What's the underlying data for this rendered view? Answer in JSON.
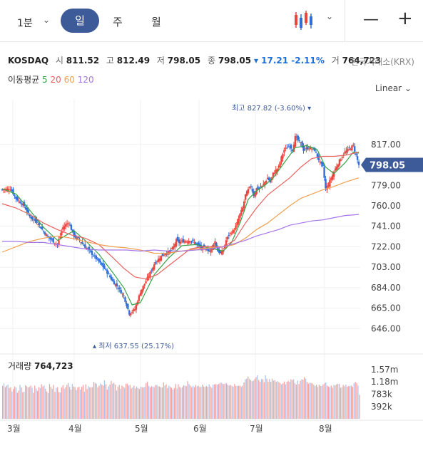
{
  "toolbar": {
    "interval": "1분",
    "periods": [
      "일",
      "주",
      "월"
    ],
    "active": "일",
    "minus": "—",
    "plus": "+"
  },
  "quote": {
    "symbol": "KOSDAQ",
    "open_label": "시",
    "open": "811.52",
    "high_label": "고",
    "high": "812.49",
    "low_label": "저",
    "low": "798.05",
    "close_label": "종",
    "close": "798.05",
    "change": "▾ 17.21 -2.11%",
    "volume_label": "거",
    "volume": "764,723",
    "exchange": "한국거래소(KRX)"
  },
  "ma_legend": {
    "label": "이동평균",
    "periods": [
      "5",
      "20",
      "60",
      "120"
    ],
    "colors": [
      "#36a34a",
      "#e8625f",
      "#f0a050",
      "#a674e8"
    ]
  },
  "scale_label": "Linear",
  "colors": {
    "up": "#e8473f",
    "down": "#2f6fd6",
    "price_tag": "#3d5a99"
  },
  "chart_data": {
    "type": "candlestick",
    "price_axis": {
      "ticks": [
        646.0,
        665.0,
        684.0,
        703.0,
        722.0,
        741.0,
        760.0,
        779.0,
        798.05,
        817.0
      ],
      "tick_labels": [
        "646.00",
        "665.00",
        "684.00",
        "703.00",
        "722.00",
        "741.00",
        "760.00",
        "779.00",
        "798.05",
        "817.00"
      ],
      "range": [
        627,
        852
      ]
    },
    "time_axis": {
      "labels": [
        "3월",
        "4월",
        "5월",
        "6월",
        "7월",
        "8월"
      ]
    },
    "annotations": {
      "high": {
        "text": "최고 827.82 (-3.60%)",
        "value": 827.82
      },
      "low": {
        "text": "최저 637.55 (25.17%)",
        "value": 637.55
      },
      "last": {
        "text": "798.05",
        "value": 798.05
      }
    },
    "close_path": [
      [
        0,
        775
      ],
      [
        6,
        776
      ],
      [
        10,
        767
      ],
      [
        16,
        760
      ],
      [
        20,
        750
      ],
      [
        26,
        744
      ],
      [
        30,
        736
      ],
      [
        34,
        730
      ],
      [
        40,
        724
      ],
      [
        44,
        740
      ],
      [
        48,
        745
      ],
      [
        52,
        732
      ],
      [
        56,
        728
      ],
      [
        60,
        722
      ],
      [
        66,
        714
      ],
      [
        70,
        708
      ],
      [
        74,
        702
      ],
      [
        80,
        690
      ],
      [
        84,
        684
      ],
      [
        88,
        676
      ],
      [
        92,
        660
      ],
      [
        96,
        664
      ],
      [
        100,
        680
      ],
      [
        104,
        690
      ],
      [
        108,
        700
      ],
      [
        110,
        706
      ],
      [
        114,
        712
      ],
      [
        118,
        716
      ],
      [
        122,
        718
      ],
      [
        124,
        722
      ],
      [
        126,
        728
      ],
      [
        128,
        726
      ],
      [
        130,
        727
      ],
      [
        136,
        728
      ],
      [
        140,
        725
      ],
      [
        144,
        721
      ],
      [
        148,
        720
      ],
      [
        150,
        718
      ],
      [
        154,
        727
      ],
      [
        156,
        718
      ],
      [
        158,
        716
      ],
      [
        160,
        719
      ],
      [
        162,
        728
      ],
      [
        164,
        733
      ],
      [
        168,
        738
      ],
      [
        170,
        744
      ],
      [
        172,
        752
      ],
      [
        174,
        758
      ],
      [
        176,
        770
      ],
      [
        178,
        775
      ],
      [
        180,
        778
      ],
      [
        182,
        770
      ],
      [
        184,
        776
      ],
      [
        186,
        776
      ],
      [
        188,
        778
      ],
      [
        190,
        782
      ],
      [
        192,
        786
      ],
      [
        194,
        782
      ],
      [
        196,
        790
      ],
      [
        200,
        796
      ],
      [
        202,
        805
      ],
      [
        204,
        812
      ],
      [
        208,
        816
      ],
      [
        210,
        812
      ],
      [
        212,
        824
      ],
      [
        216,
        818
      ],
      [
        218,
        812
      ],
      [
        222,
        814
      ],
      [
        226,
        812
      ],
      [
        230,
        800
      ],
      [
        232,
        796
      ],
      [
        234,
        776
      ],
      [
        236,
        780
      ],
      [
        240,
        792
      ],
      [
        244,
        802
      ],
      [
        248,
        810
      ],
      [
        252,
        814
      ],
      [
        254,
        816
      ],
      [
        256,
        807
      ],
      [
        258,
        798
      ]
    ],
    "ma": [
      {
        "period": "5",
        "values": [
          [
            0,
            776
          ],
          [
            10,
            771
          ],
          [
            20,
            756
          ],
          [
            30,
            740
          ],
          [
            40,
            728
          ],
          [
            44,
            731
          ],
          [
            52,
            737
          ],
          [
            60,
            728
          ],
          [
            70,
            715
          ],
          [
            80,
            698
          ],
          [
            88,
            684
          ],
          [
            94,
            668
          ],
          [
            100,
            670
          ],
          [
            110,
            696
          ],
          [
            120,
            711
          ],
          [
            130,
            723
          ],
          [
            140,
            724
          ],
          [
            150,
            721
          ],
          [
            160,
            718
          ],
          [
            166,
            726
          ],
          [
            172,
            744
          ],
          [
            178,
            766
          ],
          [
            184,
            774
          ],
          [
            190,
            779
          ],
          [
            196,
            786
          ],
          [
            204,
            800
          ],
          [
            212,
            814
          ],
          [
            220,
            816
          ],
          [
            228,
            812
          ],
          [
            234,
            796
          ],
          [
            240,
            790
          ],
          [
            248,
            800
          ],
          [
            254,
            810
          ],
          [
            258,
            809
          ]
        ]
      },
      {
        "period": "20",
        "values": [
          [
            0,
            762
          ],
          [
            10,
            758
          ],
          [
            20,
            752
          ],
          [
            30,
            744
          ],
          [
            40,
            738
          ],
          [
            50,
            733
          ],
          [
            60,
            730
          ],
          [
            70,
            724
          ],
          [
            80,
            712
          ],
          [
            88,
            702
          ],
          [
            96,
            694
          ],
          [
            104,
            692
          ],
          [
            112,
            696
          ],
          [
            120,
            704
          ],
          [
            128,
            712
          ],
          [
            136,
            720
          ],
          [
            144,
            722
          ],
          [
            152,
            722
          ],
          [
            160,
            722
          ],
          [
            168,
            728
          ],
          [
            176,
            744
          ],
          [
            184,
            758
          ],
          [
            192,
            770
          ],
          [
            200,
            778
          ],
          [
            208,
            786
          ],
          [
            216,
            796
          ],
          [
            224,
            804
          ],
          [
            232,
            806
          ],
          [
            240,
            806
          ],
          [
            248,
            807
          ],
          [
            258,
            810
          ]
        ]
      },
      {
        "period": "60",
        "values": [
          [
            0,
            717
          ],
          [
            10,
            722
          ],
          [
            20,
            727
          ],
          [
            30,
            730
          ],
          [
            40,
            732
          ],
          [
            50,
            730
          ],
          [
            60,
            727
          ],
          [
            70,
            724
          ],
          [
            80,
            722
          ],
          [
            90,
            721
          ],
          [
            100,
            719
          ],
          [
            110,
            716
          ],
          [
            120,
            716
          ],
          [
            130,
            718
          ],
          [
            140,
            720
          ],
          [
            150,
            721
          ],
          [
            160,
            722
          ],
          [
            168,
            724
          ],
          [
            176,
            730
          ],
          [
            184,
            738
          ],
          [
            192,
            744
          ],
          [
            200,
            752
          ],
          [
            208,
            760
          ],
          [
            216,
            767
          ],
          [
            224,
            771
          ],
          [
            232,
            775
          ],
          [
            240,
            778
          ],
          [
            248,
            782
          ],
          [
            258,
            786
          ]
        ]
      },
      {
        "period": "120",
        "values": [
          [
            0,
            727
          ],
          [
            10,
            727
          ],
          [
            20,
            726
          ],
          [
            30,
            726
          ],
          [
            40,
            724
          ],
          [
            50,
            722
          ],
          [
            60,
            720
          ],
          [
            70,
            719
          ],
          [
            80,
            719
          ],
          [
            90,
            719
          ],
          [
            100,
            718
          ],
          [
            110,
            719
          ],
          [
            120,
            718
          ],
          [
            130,
            718
          ],
          [
            140,
            719
          ],
          [
            150,
            720
          ],
          [
            160,
            722
          ],
          [
            168,
            725
          ],
          [
            176,
            728
          ],
          [
            184,
            732
          ],
          [
            192,
            735
          ],
          [
            200,
            738
          ],
          [
            208,
            742
          ],
          [
            216,
            744
          ],
          [
            224,
            746
          ],
          [
            232,
            747
          ],
          [
            240,
            749
          ],
          [
            248,
            751
          ],
          [
            258,
            752
          ]
        ]
      }
    ],
    "volume": {
      "label": "거래량",
      "value": "764,723",
      "axis_ticks": [
        "1.57m",
        "1.18m",
        "783k",
        "392k"
      ],
      "tick_values": [
        1570000,
        1180000,
        783000,
        392000
      ],
      "range": [
        0,
        2000000
      ],
      "bars": [
        1050,
        1130,
        1010,
        1060,
        1090,
        980,
        1010,
        870,
        950,
        1030,
        1000,
        830,
        900,
        1080,
        1000,
        850,
        860,
        1070,
        1040,
        1000,
        1020,
        1060,
        990,
        830,
        1060,
        970,
        890,
        1010,
        980,
        1100,
        1030,
        1060,
        960,
        870,
        820,
        1110,
        1020,
        960,
        1080,
        860,
        990,
        1010,
        850,
        840,
        1000,
        1070,
        960,
        1010,
        1090,
        1140,
        1020,
        930,
        1110,
        1030,
        1010,
        920,
        1000,
        1020,
        930,
        1020,
        1080,
        870,
        1100,
        950,
        1040,
        1000,
        1010,
        1010,
        1180,
        1140,
        1120,
        1000,
        1060,
        1130,
        1090,
        1060,
        1230,
        1100,
        930,
        1040,
        1090,
        1210,
        1120,
        1150,
        1090,
        900,
        1020,
        1080,
        960,
        1060,
        1020,
        990,
        1120,
        1120,
        1060,
        1080,
        970,
        1000,
        1060,
        970,
        1030,
        980,
        950,
        1020,
        1010,
        1000,
        1020,
        1140,
        1190,
        1050,
        1000,
        1040,
        1030,
        1010,
        1080,
        1080,
        1040,
        1030,
        1010,
        1000,
        1160,
        1060,
        1100,
        980,
        1060,
        1020,
        990,
        930,
        980,
        1110,
        970,
        1100,
        1020,
        990,
        1010,
        1070,
        1060,
        1040,
        1200,
        1110,
        1060,
        1010,
        1050,
        1010,
        1080,
        1040,
        1050,
        1010,
        1030,
        1090,
        1030,
        1020,
        1050,
        1020,
        1100,
        1030,
        990,
        1090,
        1100,
        1110,
        1090,
        1110,
        1130,
        1160,
        1120,
        1110,
        1130,
        1130,
        1080,
        1060,
        1080,
        1050,
        1030,
        1110,
        1050,
        1050,
        1050,
        1060,
        1020,
        1060,
        1160,
        1260,
        1280,
        1350,
        1280,
        1240,
        1200,
        1220,
        1270,
        1330,
        1390,
        1240,
        1180,
        1270,
        1260,
        1170,
        1390,
        1280,
        1180,
        1270,
        1180,
        1280,
        1220,
        1230,
        1180,
        1200,
        1170,
        1140,
        1100,
        1130,
        1190,
        1100,
        1180,
        1210,
        1180,
        1260,
        1240,
        1260,
        1140,
        1090,
        1220,
        1110,
        1210,
        1260,
        1250,
        1330,
        1280,
        1180,
        1120,
        1150,
        1140,
        1130,
        1090,
        1050,
        1090,
        1020,
        1090,
        1050,
        1050,
        1100,
        1130,
        1160,
        1060,
        1030,
        1010,
        1060,
        990,
        1080,
        1070,
        1100,
        1120,
        1110,
        990,
        1010,
        1080,
        1040,
        1090,
        1030,
        1040,
        1050,
        1060,
        1020,
        1130,
        1180,
        1140,
        1060,
        764
      ]
    }
  }
}
